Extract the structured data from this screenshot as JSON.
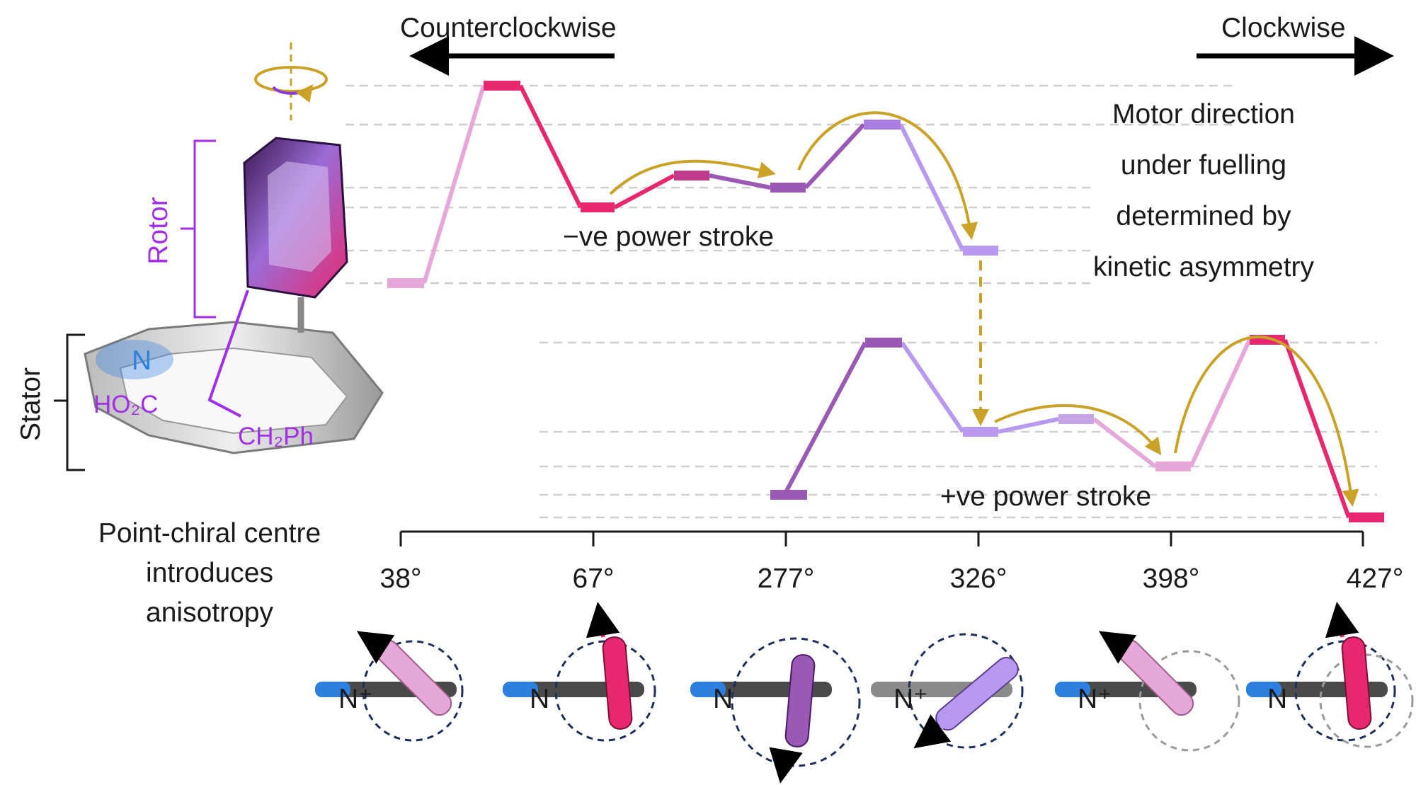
{
  "directions": {
    "left": "Counterclockwise",
    "right": "Clockwise"
  },
  "labels": {
    "rotor": "Rotor",
    "stator": "Stator",
    "n": "N",
    "ho2c": "HO₂C",
    "ch2ph": "CH₂Ph",
    "point_chiral_line1": "Point-chiral centre",
    "point_chiral_line2": "introduces",
    "point_chiral_line3": "anisotropy",
    "motor_line1": "Motor direction",
    "motor_line2": "under fuelling",
    "motor_line3": "determined by",
    "motor_line4": "kinetic asymmetry",
    "neg_stroke": "−ve power stroke",
    "pos_stroke": "+ve power stroke"
  },
  "angles": [
    "38°",
    "67°",
    "277°",
    "326°",
    "398°",
    "427°"
  ],
  "conformer_labels": [
    "N⁺",
    "N",
    "N",
    "N⁺",
    "N⁺",
    "N"
  ],
  "colors": {
    "pink_light": "#e6a8d8",
    "magenta": "#e8286e",
    "purple": "#9b59b6",
    "lavender": "#b79af0",
    "gold_arrow": "#c9a227",
    "grid_dash": "#cfcfcf",
    "blue_n": "#2d7fe0",
    "purple_text": "#a12fe6"
  }
}
